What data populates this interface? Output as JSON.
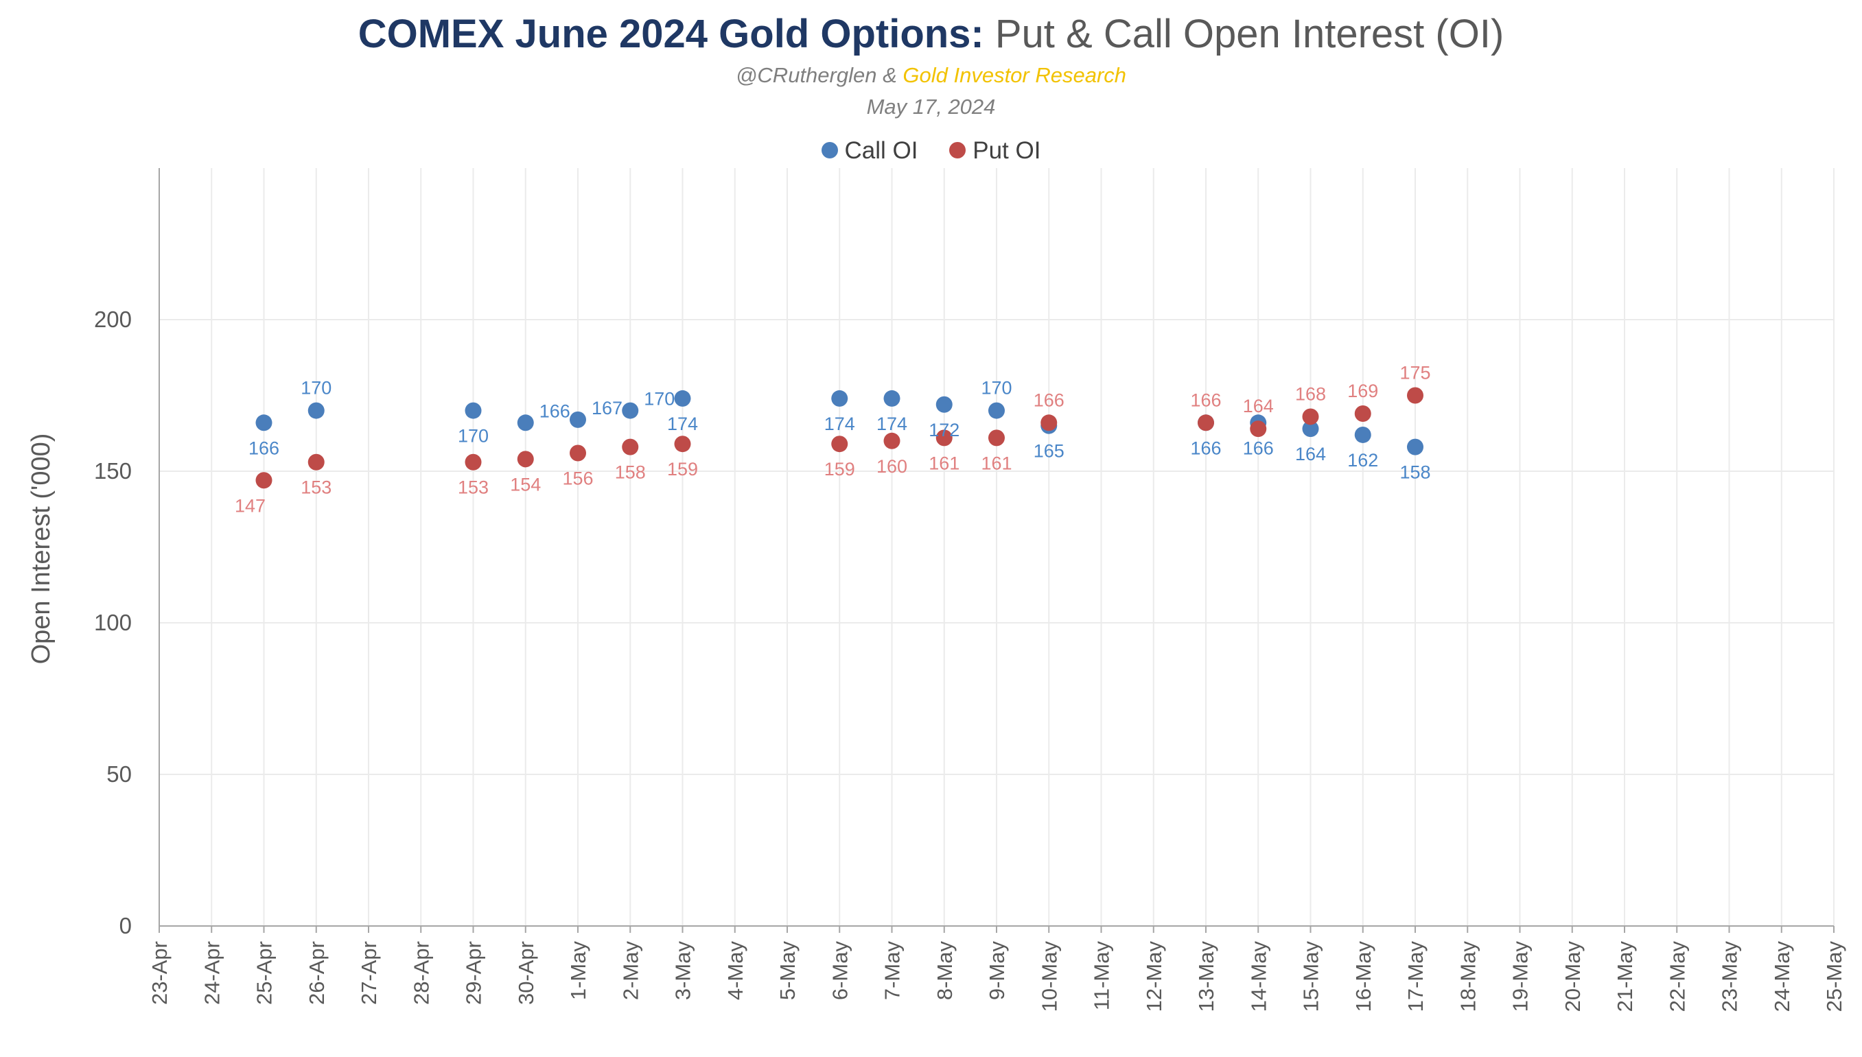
{
  "chart_data": {
    "type": "scatter",
    "title_bold": "COMEX June 2024 Gold Options:",
    "title_rest": " Put & Call Open Interest (OI)",
    "subtitle_author": "@CRutherglen",
    "subtitle_amp": " & ",
    "subtitle_org": "Gold Investor Research",
    "date": "May 17, 2024",
    "ylabel": "Open Interest ('000)",
    "xlabel": "",
    "ylim": [
      0,
      250
    ],
    "yticks": [
      0,
      50,
      100,
      150,
      200
    ],
    "grid": true,
    "legend_position": "top",
    "x_categories": [
      "23-Apr",
      "24-Apr",
      "25-Apr",
      "26-Apr",
      "27-Apr",
      "28-Apr",
      "29-Apr",
      "30-Apr",
      "1-May",
      "2-May",
      "3-May",
      "4-May",
      "5-May",
      "6-May",
      "7-May",
      "8-May",
      "9-May",
      "10-May",
      "11-May",
      "12-May",
      "13-May",
      "14-May",
      "15-May",
      "16-May",
      "17-May",
      "18-May",
      "19-May",
      "20-May",
      "21-May",
      "22-May",
      "23-May",
      "24-May",
      "25-May"
    ],
    "series": [
      {
        "name": "Call OI",
        "color": "#4a7ebb",
        "label_color": "#4a86c8",
        "points": [
          {
            "x": "25-Apr",
            "y": 166,
            "label": "166",
            "label_pos": "below"
          },
          {
            "x": "26-Apr",
            "y": 170,
            "label": "170",
            "label_pos": "above"
          },
          {
            "x": "29-Apr",
            "y": 170,
            "label": "170",
            "label_pos": "below"
          },
          {
            "x": "30-Apr",
            "y": 166,
            "label": "166",
            "label_pos": "right"
          },
          {
            "x": "1-May",
            "y": 167,
            "label": "167",
            "label_pos": "right"
          },
          {
            "x": "2-May",
            "y": 170,
            "label": "170",
            "label_pos": "right"
          },
          {
            "x": "3-May",
            "y": 174,
            "label": "174",
            "label_pos": "below"
          },
          {
            "x": "6-May",
            "y": 174,
            "label": "174",
            "label_pos": "below"
          },
          {
            "x": "7-May",
            "y": 174,
            "label": "174",
            "label_pos": "below"
          },
          {
            "x": "8-May",
            "y": 172,
            "label": "172",
            "label_pos": "below"
          },
          {
            "x": "9-May",
            "y": 170,
            "label": "170",
            "label_pos": "above"
          },
          {
            "x": "10-May",
            "y": 165,
            "label": "165",
            "label_pos": "below"
          },
          {
            "x": "13-May",
            "y": 166,
            "label": "166",
            "label_pos": "below"
          },
          {
            "x": "14-May",
            "y": 166,
            "label": "166",
            "label_pos": "below"
          },
          {
            "x": "15-May",
            "y": 164,
            "label": "164",
            "label_pos": "below"
          },
          {
            "x": "16-May",
            "y": 162,
            "label": "162",
            "label_pos": "below"
          },
          {
            "x": "17-May",
            "y": 158,
            "label": "158",
            "label_pos": "below"
          }
        ]
      },
      {
        "name": "Put OI",
        "color": "#be4b48",
        "label_color": "#e08080",
        "points": [
          {
            "x": "25-Apr",
            "y": 147,
            "label": "147",
            "label_pos": "below-left"
          },
          {
            "x": "26-Apr",
            "y": 153,
            "label": "153",
            "label_pos": "below"
          },
          {
            "x": "29-Apr",
            "y": 153,
            "label": "153",
            "label_pos": "below"
          },
          {
            "x": "30-Apr",
            "y": 154,
            "label": "154",
            "label_pos": "below"
          },
          {
            "x": "1-May",
            "y": 156,
            "label": "156",
            "label_pos": "below"
          },
          {
            "x": "2-May",
            "y": 158,
            "label": "158",
            "label_pos": "below"
          },
          {
            "x": "3-May",
            "y": 159,
            "label": "159",
            "label_pos": "below"
          },
          {
            "x": "6-May",
            "y": 159,
            "label": "159",
            "label_pos": "below"
          },
          {
            "x": "7-May",
            "y": 160,
            "label": "160",
            "label_pos": "below"
          },
          {
            "x": "8-May",
            "y": 161,
            "label": "161",
            "label_pos": "below"
          },
          {
            "x": "9-May",
            "y": 161,
            "label": "161",
            "label_pos": "below"
          },
          {
            "x": "10-May",
            "y": 166,
            "label": "166",
            "label_pos": "above"
          },
          {
            "x": "13-May",
            "y": 166,
            "label": "166",
            "label_pos": "above"
          },
          {
            "x": "14-May",
            "y": 164,
            "label": "164",
            "label_pos": "above"
          },
          {
            "x": "15-May",
            "y": 168,
            "label": "168",
            "label_pos": "above"
          },
          {
            "x": "16-May",
            "y": 169,
            "label": "169",
            "label_pos": "above"
          },
          {
            "x": "17-May",
            "y": 175,
            "label": "175",
            "label_pos": "above"
          }
        ]
      }
    ]
  }
}
